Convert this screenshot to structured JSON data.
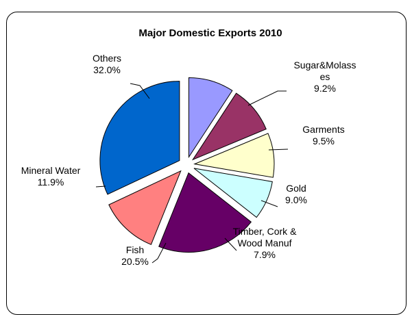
{
  "chart_data": {
    "type": "pie",
    "title": "Major Domestic Exports 2010",
    "slices": [
      {
        "label": [
          "Sugar&Molass",
          "es"
        ],
        "percent_label": "9.2%",
        "value": 9.2,
        "color": "#9999ff"
      },
      {
        "label": [
          "Garments"
        ],
        "percent_label": "9.5%",
        "value": 9.5,
        "color": "#993366"
      },
      {
        "label": [
          "Gold"
        ],
        "percent_label": "9.0%",
        "value": 9.0,
        "color": "#ffffcc"
      },
      {
        "label": [
          "Timber, Cork &",
          "Wood Manuf"
        ],
        "percent_label": "7.9%",
        "value": 7.9,
        "color": "#ccffff"
      },
      {
        "label": [
          "Fish"
        ],
        "percent_label": "20.5%",
        "value": 20.5,
        "color": "#660066"
      },
      {
        "label": [
          "Mineral Water"
        ],
        "percent_label": "11.9%",
        "value": 11.9,
        "color": "#ff8080"
      },
      {
        "label": [
          "Others"
        ],
        "percent_label": "32.0%",
        "value": 32.0,
        "color": "#0066cc"
      }
    ],
    "start_angle": "top",
    "direction": "clockwise",
    "exploded": true
  }
}
